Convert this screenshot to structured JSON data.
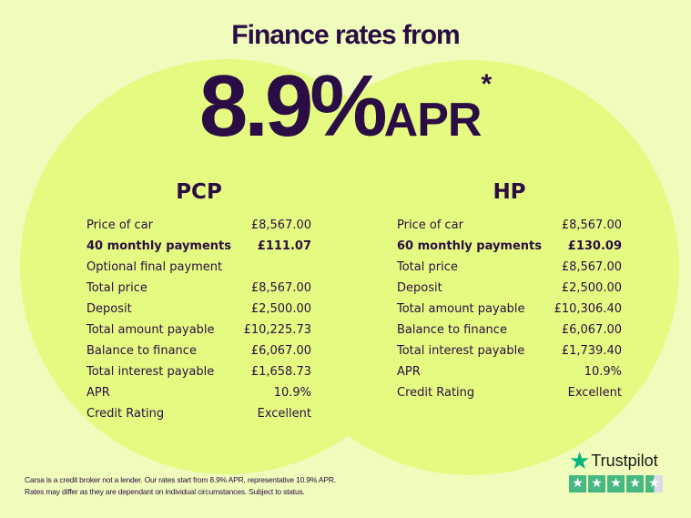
{
  "headline": "Finance rates from",
  "rate": {
    "value": "8.9%",
    "suffix": "APR",
    "asterisk": "*"
  },
  "pcp": {
    "title": "PCP",
    "rows": [
      {
        "label": "Price of car",
        "value": "£8,567.00",
        "bold": false
      },
      {
        "label": "40 monthly payments",
        "value": "£111.07",
        "bold": true
      },
      {
        "label": "Optional final payment",
        "value": "",
        "bold": false
      },
      {
        "label": "Total price",
        "value": "£8,567.00",
        "bold": false
      },
      {
        "label": "Deposit",
        "value": "£2,500.00",
        "bold": false
      },
      {
        "label": "Total amount payable",
        "value": "£10,225.73",
        "bold": false
      },
      {
        "label": "Balance to finance",
        "value": "£6,067.00",
        "bold": false
      },
      {
        "label": "Total interest payable",
        "value": "£1,658.73",
        "bold": false
      },
      {
        "label": "APR",
        "value": "10.9%",
        "bold": false
      },
      {
        "label": "Credit Rating",
        "value": "Excellent",
        "bold": false
      }
    ]
  },
  "hp": {
    "title": "HP",
    "rows": [
      {
        "label": "Price of car",
        "value": "£8,567.00",
        "bold": false
      },
      {
        "label": "60 monthly payments",
        "value": "£130.09",
        "bold": true
      },
      {
        "label": "Total price",
        "value": "£8,567.00",
        "bold": false
      },
      {
        "label": "Deposit",
        "value": "£2,500.00",
        "bold": false
      },
      {
        "label": "Total amount payable",
        "value": "£10,306.40",
        "bold": false
      },
      {
        "label": "Balance to finance",
        "value": "£6,067.00",
        "bold": false
      },
      {
        "label": "Total interest payable",
        "value": "£1,739.40",
        "bold": false
      },
      {
        "label": "APR",
        "value": "10.9%",
        "bold": false
      },
      {
        "label": "Credit Rating",
        "value": "Excellent",
        "bold": false
      }
    ]
  },
  "disclaimer": {
    "line1": "Carsa is a credit broker not a lender. Our rates start from 8.9% APR, representative 10.9% APR.",
    "line2": "Rates may differ as they are dependant on individual circumstances. Subject to status."
  },
  "trustpilot": {
    "label": "Trustpilot",
    "rating": 4.5,
    "max": 5,
    "icon": "star-icon",
    "color": "#00b67a"
  },
  "colors": {
    "text": "#2b0d45",
    "background": "#effcbc",
    "circles": "#e5fa80"
  }
}
